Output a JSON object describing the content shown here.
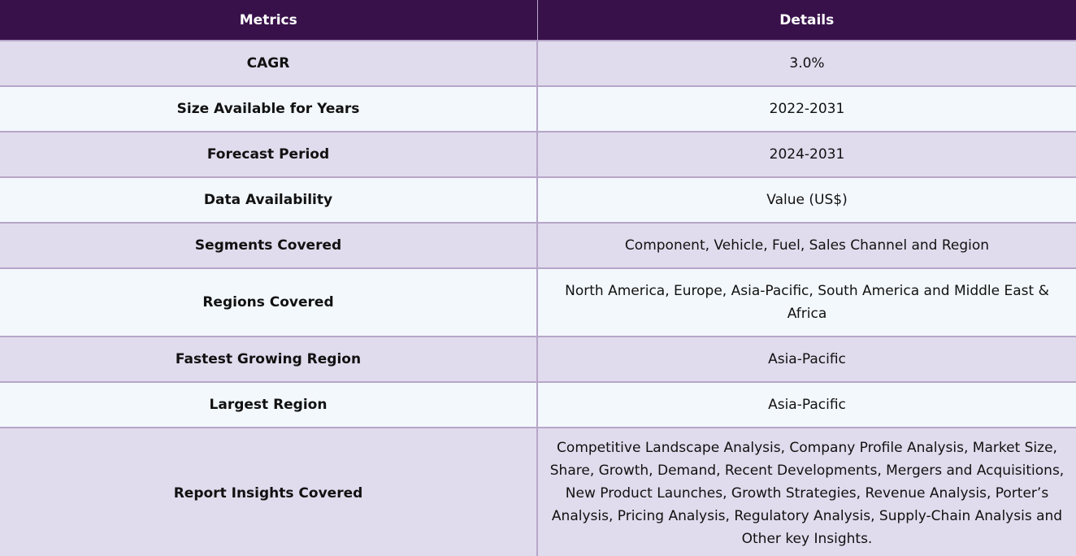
{
  "table": {
    "headers": {
      "metrics": "Metrics",
      "details": "Details"
    },
    "rows": [
      {
        "metric": "CAGR",
        "detail": "3.0%"
      },
      {
        "metric": "Size Available for Years",
        "detail": "2022-2031"
      },
      {
        "metric": "Forecast Period",
        "detail": "2024-2031"
      },
      {
        "metric": "Data Availability",
        "detail": "Value (US$)"
      },
      {
        "metric": "Segments Covered",
        "detail": "Component, Vehicle, Fuel, Sales Channel and Region"
      },
      {
        "metric": "Regions Covered",
        "detail": "North America, Europe, Asia-Pacific, South America and Middle East & Africa"
      },
      {
        "metric": "Fastest Growing Region",
        "detail": "Asia-Pacific"
      },
      {
        "metric": "Largest Region",
        "detail": "Asia-Pacific"
      },
      {
        "metric": "Report Insights Covered",
        "detail": "Competitive Landscape Analysis, Company Profile Analysis, Market Size, Share, Growth, Demand, Recent Developments, Mergers and Acquisitions, New Product Launches, Growth Strategies, Revenue Analysis, Porter’s Analysis, Pricing Analysis, Regulatory Analysis, Supply-Chain Analysis and Other key Insights."
      }
    ]
  },
  "colors": {
    "header_bg": "#38114a",
    "row_odd_bg": "#e0dced",
    "row_even_bg": "#f3f8fc",
    "border": "#b7a6c9"
  }
}
